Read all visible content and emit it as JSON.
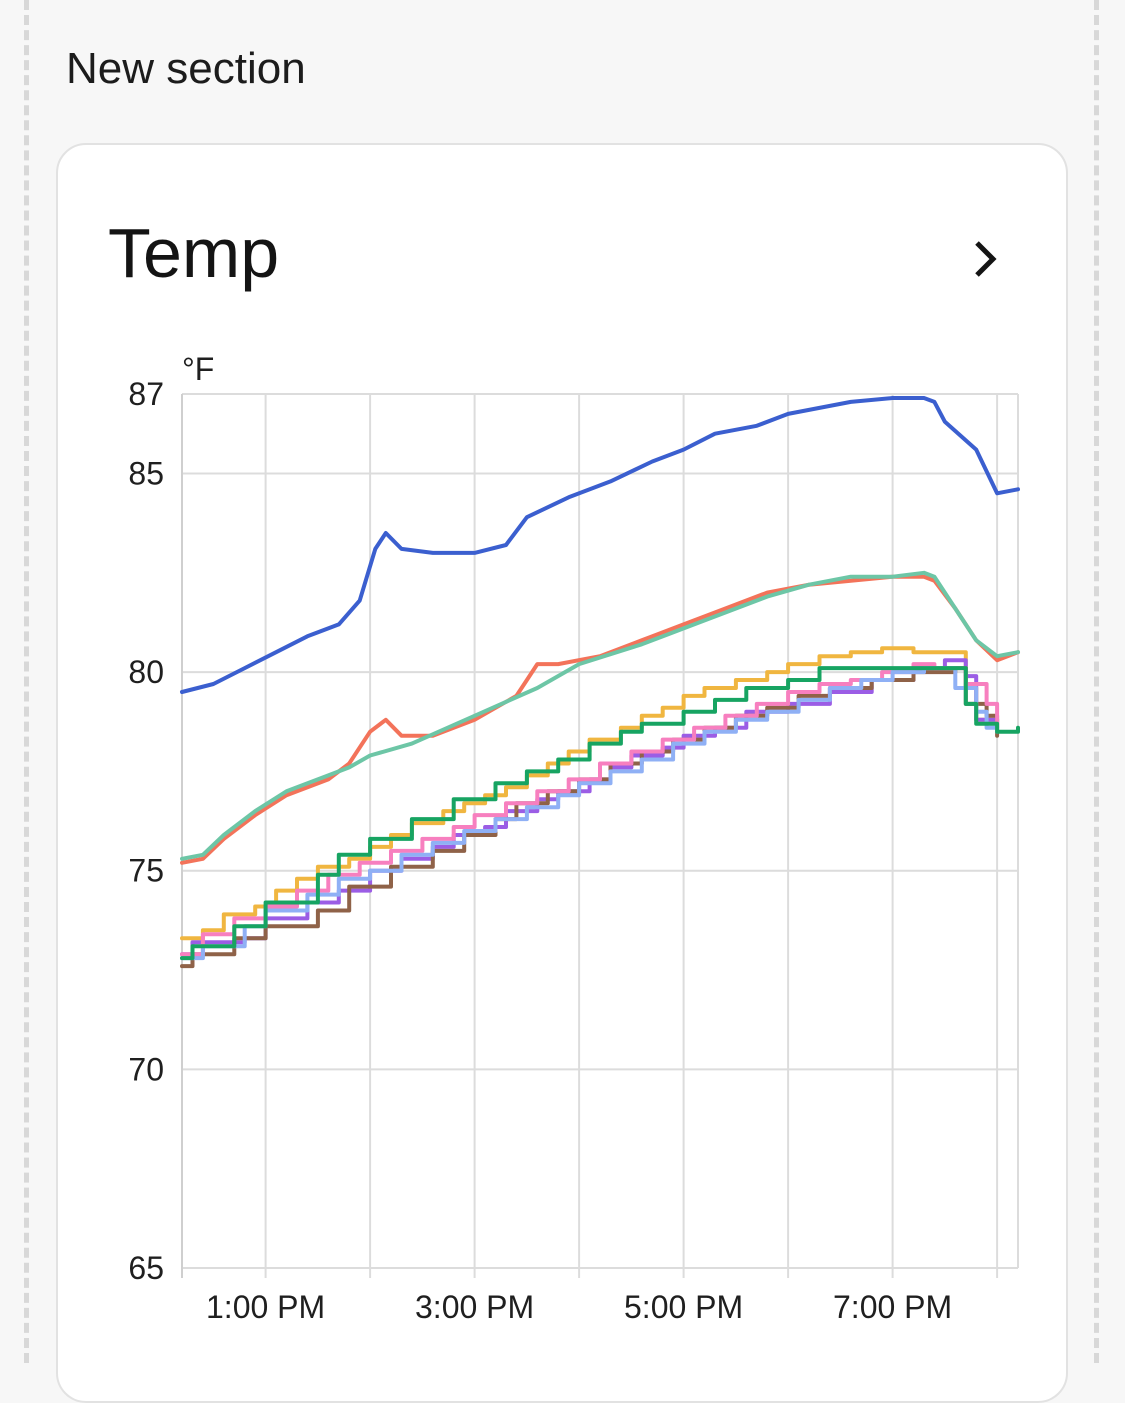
{
  "section": {
    "title": "New section"
  },
  "card": {
    "title": "Temp",
    "chevron_icon": "chevron-right-icon"
  },
  "chart_data": {
    "type": "line",
    "unit": "°F",
    "ylim": [
      65,
      87
    ],
    "y_ticks": [
      65,
      70,
      75,
      80,
      85,
      87
    ],
    "x_range_hours": [
      12.2,
      20.2
    ],
    "x_ticks": [
      {
        "hour": 13,
        "label": "1:00 PM"
      },
      {
        "hour": 15,
        "label": "3:00 PM"
      },
      {
        "hour": 17,
        "label": "5:00 PM"
      },
      {
        "hour": 19,
        "label": "7:00 PM"
      }
    ],
    "x_gridlines_hours": [
      13,
      14,
      15,
      16,
      17,
      18,
      19,
      20
    ],
    "grid": true,
    "series": [
      {
        "color": "#3b5fcf",
        "step": false,
        "x": [
          12.2,
          12.5,
          12.8,
          13.1,
          13.4,
          13.7,
          13.9,
          14.05,
          14.15,
          14.3,
          14.6,
          15.0,
          15.3,
          15.5,
          15.9,
          16.3,
          16.7,
          17.0,
          17.3,
          17.7,
          18.0,
          18.2,
          18.6,
          19.0,
          19.3,
          19.4,
          19.5,
          19.8,
          20.0,
          20.2
        ],
        "y": [
          79.5,
          79.7,
          80.1,
          80.5,
          80.9,
          81.2,
          81.8,
          83.1,
          83.5,
          83.1,
          83.0,
          83.0,
          83.2,
          83.9,
          84.4,
          84.8,
          85.3,
          85.6,
          86.0,
          86.2,
          86.5,
          86.6,
          86.8,
          86.9,
          86.9,
          86.8,
          86.3,
          85.6,
          84.5,
          84.6
        ]
      },
      {
        "color": "#f3735a",
        "step": false,
        "x": [
          12.2,
          12.4,
          12.6,
          12.9,
          13.2,
          13.6,
          13.8,
          14.0,
          14.15,
          14.3,
          14.6,
          15.0,
          15.4,
          15.5,
          15.6,
          15.8,
          16.2,
          16.6,
          17.0,
          17.4,
          17.8,
          18.2,
          18.6,
          19.0,
          19.3,
          19.4,
          19.6,
          19.8,
          20.0,
          20.2
        ],
        "y": [
          75.2,
          75.3,
          75.8,
          76.4,
          76.9,
          77.3,
          77.7,
          78.5,
          78.8,
          78.4,
          78.4,
          78.8,
          79.4,
          79.8,
          80.2,
          80.2,
          80.4,
          80.8,
          81.2,
          81.6,
          82.0,
          82.2,
          82.3,
          82.4,
          82.4,
          82.3,
          81.6,
          80.8,
          80.3,
          80.5
        ]
      },
      {
        "color": "#6dc6a6",
        "step": false,
        "x": [
          12.2,
          12.4,
          12.6,
          12.9,
          13.2,
          13.6,
          13.8,
          14.0,
          14.4,
          15.0,
          15.6,
          16.0,
          16.6,
          17.0,
          17.4,
          17.8,
          18.2,
          18.6,
          19.0,
          19.3,
          19.4,
          19.6,
          19.8,
          20.0,
          20.2
        ],
        "y": [
          75.3,
          75.4,
          75.9,
          76.5,
          77.0,
          77.4,
          77.6,
          77.9,
          78.2,
          78.9,
          79.6,
          80.2,
          80.7,
          81.1,
          81.5,
          81.9,
          82.2,
          82.4,
          82.4,
          82.5,
          82.4,
          81.6,
          80.8,
          80.4,
          80.5
        ]
      },
      {
        "color": "#f0b640",
        "step": true,
        "x": [
          12.2,
          12.4,
          12.6,
          12.9,
          13.1,
          13.3,
          13.5,
          13.8,
          14.0,
          14.2,
          14.4,
          14.7,
          14.9,
          15.1,
          15.3,
          15.5,
          15.7,
          15.9,
          16.1,
          16.4,
          16.6,
          16.8,
          17.0,
          17.2,
          17.5,
          17.8,
          18.0,
          18.3,
          18.6,
          18.9,
          19.2,
          19.5,
          19.7,
          19.8,
          20.0
        ],
        "y": [
          73.3,
          73.5,
          73.9,
          74.1,
          74.5,
          74.8,
          75.1,
          75.3,
          75.6,
          75.9,
          76.2,
          76.5,
          76.7,
          76.9,
          77.1,
          77.4,
          77.7,
          78.0,
          78.3,
          78.6,
          78.9,
          79.1,
          79.4,
          79.6,
          79.8,
          80.0,
          80.2,
          80.4,
          80.5,
          80.6,
          80.5,
          80.5,
          79.6,
          78.8,
          78.8
        ]
      },
      {
        "color": "#9b5de5",
        "step": true,
        "x": [
          12.2,
          12.3,
          12.8,
          13.0,
          13.4,
          13.7,
          14.0,
          14.3,
          14.6,
          14.8,
          15.1,
          15.3,
          15.6,
          15.8,
          16.1,
          16.3,
          16.5,
          16.8,
          17.0,
          17.3,
          17.6,
          18.0,
          18.4,
          18.8,
          19.2,
          19.5,
          19.7,
          19.8,
          20.0
        ],
        "y": [
          72.9,
          73.2,
          73.3,
          73.8,
          74.2,
          74.5,
          75.0,
          75.3,
          75.6,
          75.9,
          76.1,
          76.5,
          76.8,
          77.0,
          77.3,
          77.6,
          77.9,
          78.1,
          78.4,
          78.6,
          79.0,
          79.2,
          79.5,
          79.8,
          80.1,
          80.3,
          79.9,
          78.8,
          78.6
        ]
      },
      {
        "color": "#8f6248",
        "step": true,
        "x": [
          12.2,
          12.3,
          12.7,
          13.0,
          13.5,
          13.8,
          14.2,
          14.6,
          14.9,
          15.2,
          15.4,
          15.7,
          16.0,
          16.3,
          16.6,
          16.9,
          17.2,
          17.5,
          17.8,
          18.1,
          18.4,
          18.8,
          19.2,
          19.6,
          19.7,
          19.9,
          20.0
        ],
        "y": [
          72.6,
          72.9,
          73.3,
          73.6,
          74.0,
          74.6,
          75.1,
          75.5,
          75.9,
          76.3,
          76.7,
          77.0,
          77.3,
          77.7,
          78.0,
          78.3,
          78.6,
          78.9,
          79.1,
          79.4,
          79.6,
          79.8,
          80.0,
          80.1,
          79.2,
          78.9,
          78.4
        ]
      },
      {
        "color": "#f77fbf",
        "step": true,
        "x": [
          12.2,
          12.4,
          12.7,
          13.0,
          13.3,
          13.6,
          13.9,
          14.2,
          14.5,
          14.8,
          15.0,
          15.3,
          15.6,
          15.9,
          16.2,
          16.5,
          16.8,
          17.1,
          17.4,
          17.7,
          18.0,
          18.3,
          18.6,
          18.9,
          19.2,
          19.4,
          19.7,
          19.9,
          20.0
        ],
        "y": [
          72.9,
          73.4,
          73.8,
          74.1,
          74.5,
          74.9,
          75.2,
          75.5,
          75.8,
          76.1,
          76.4,
          76.7,
          77.0,
          77.3,
          77.7,
          78.0,
          78.3,
          78.6,
          78.9,
          79.2,
          79.5,
          79.7,
          79.8,
          80.0,
          80.2,
          80.1,
          79.7,
          79.2,
          78.6
        ]
      },
      {
        "color": "#8fb0f5",
        "step": true,
        "x": [
          12.2,
          12.4,
          12.8,
          13.0,
          13.4,
          13.7,
          14.0,
          14.3,
          14.6,
          14.9,
          15.2,
          15.5,
          15.8,
          16.0,
          16.3,
          16.6,
          16.9,
          17.2,
          17.5,
          17.8,
          18.1,
          18.4,
          18.7,
          19.0,
          19.3,
          19.6,
          19.8,
          19.9,
          20.0
        ],
        "y": [
          72.8,
          73.1,
          73.6,
          74.0,
          74.4,
          74.8,
          75.0,
          75.4,
          75.7,
          76.0,
          76.3,
          76.6,
          76.9,
          77.2,
          77.5,
          77.8,
          78.2,
          78.5,
          78.8,
          79.0,
          79.3,
          79.6,
          79.8,
          80.0,
          80.1,
          79.6,
          79.0,
          78.6,
          78.5
        ]
      },
      {
        "color": "#17a462",
        "step": true,
        "x": [
          12.2,
          12.3,
          12.7,
          13.0,
          13.5,
          13.7,
          14.0,
          14.4,
          14.8,
          15.2,
          15.5,
          15.8,
          16.1,
          16.4,
          16.6,
          17.0,
          17.3,
          17.6,
          18.0,
          18.3,
          18.6,
          18.9,
          19.3,
          19.7,
          19.8,
          20.0,
          20.2
        ],
        "y": [
          72.8,
          73.1,
          73.6,
          74.2,
          74.9,
          75.4,
          75.8,
          76.3,
          76.8,
          77.2,
          77.5,
          77.8,
          78.2,
          78.5,
          78.7,
          79.0,
          79.3,
          79.6,
          79.8,
          80.1,
          80.1,
          80.1,
          80.1,
          79.2,
          78.7,
          78.5,
          78.6
        ]
      }
    ]
  }
}
